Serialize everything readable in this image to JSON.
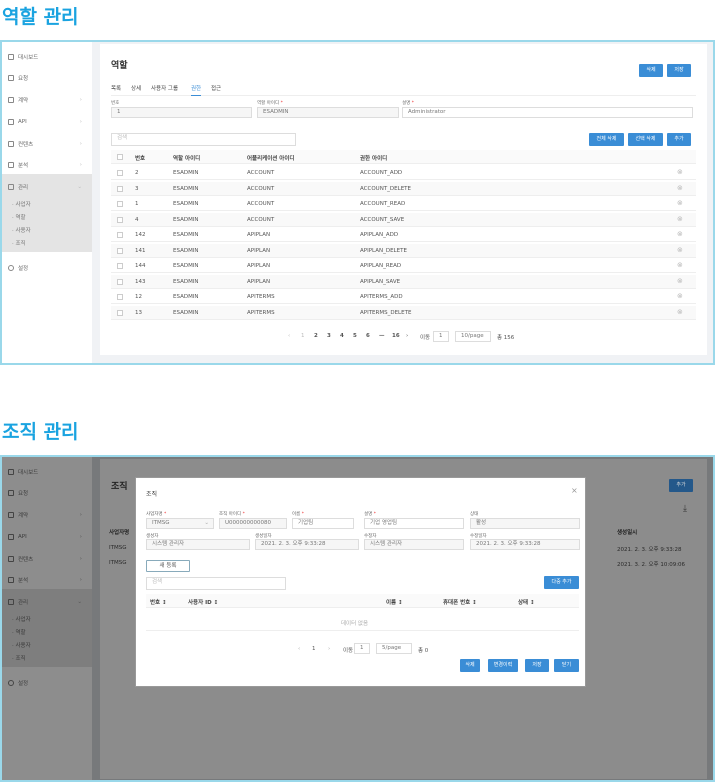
{
  "sections": {
    "role_title": "역할 관리",
    "org_title": "조직 관리"
  },
  "sidebar": {
    "items": [
      {
        "label": "대시보드",
        "icon": "dashboard-icon"
      },
      {
        "label": "요청",
        "icon": "request-icon"
      },
      {
        "label": "계약",
        "icon": "contract-icon"
      },
      {
        "label": "API",
        "icon": "api-icon"
      },
      {
        "label": "컨텐츠",
        "icon": "content-icon"
      },
      {
        "label": "분석",
        "icon": "analytics-icon"
      },
      {
        "label": "관리",
        "icon": "admin-icon"
      }
    ],
    "sub_items": [
      "사업자",
      "역할",
      "사용자",
      "조직"
    ],
    "settings": "설정"
  },
  "role": {
    "page_title": "역할",
    "delete": "삭제",
    "save": "저장",
    "tabs": [
      "목록",
      "상세",
      "사용자 그룹",
      "권한",
      "접근"
    ],
    "active_tab": "권한",
    "fields": {
      "no_label": "번호",
      "no_value": "1",
      "role_id_label": "역할 아이디",
      "role_id_value": "ESADMIN",
      "desc_label": "설명",
      "desc_value": "Administrator"
    },
    "search_placeholder": "검색",
    "delete_all": "전체 삭제",
    "delete_selected": "선택 삭제",
    "add": "추가",
    "columns": [
      "번호",
      "역할 아이디",
      "어플리케이션 아이디",
      "권한 아이디"
    ],
    "rows": [
      [
        "2",
        "ESADMIN",
        "ACCOUNT",
        "ACCOUNT_ADD"
      ],
      [
        "3",
        "ESADMIN",
        "ACCOUNT",
        "ACCOUNT_DELETE"
      ],
      [
        "1",
        "ESADMIN",
        "ACCOUNT",
        "ACCOUNT_READ"
      ],
      [
        "4",
        "ESADMIN",
        "ACCOUNT",
        "ACCOUNT_SAVE"
      ],
      [
        "142",
        "ESADMIN",
        "APIPLAN",
        "APIPLAN_ADD"
      ],
      [
        "141",
        "ESADMIN",
        "APIPLAN",
        "APIPLAN_DELETE"
      ],
      [
        "144",
        "ESADMIN",
        "APIPLAN",
        "APIPLAN_READ"
      ],
      [
        "143",
        "ESADMIN",
        "APIPLAN",
        "APIPLAN_SAVE"
      ],
      [
        "12",
        "ESADMIN",
        "APITERMS",
        "APITERMS_ADD"
      ],
      [
        "13",
        "ESADMIN",
        "APITERMS",
        "APITERMS_DELETE"
      ]
    ],
    "pagination": {
      "prev": "‹",
      "pages": [
        "1",
        "2",
        "3",
        "4",
        "5",
        "6",
        "—",
        "16"
      ],
      "current": "1",
      "next": "›",
      "goto_label": "이동",
      "goto_value": "1",
      "page_size": "10/page",
      "total": "총 156"
    }
  },
  "org": {
    "page_title": "조직",
    "add": "추가",
    "bg_columns": {
      "first": "사업자명",
      "last": "생성일시"
    },
    "bg_rows": [
      [
        "ITMSG",
        "2021. 2. 3. 오후 9:33:28"
      ],
      [
        "ITMSG",
        "2021. 3. 2. 오후 10:09:06"
      ]
    ],
    "modal": {
      "title": "조직",
      "close": "×",
      "f_biz_label": "사업자명",
      "f_biz_value": "ITMSG",
      "f_org_label": "조직 아이디",
      "f_org_value": "U000000000080",
      "f_name_label": "이름",
      "f_name_value": "기업팀",
      "f_desc_label": "설명",
      "f_desc_value": "기업 영업팀",
      "f_status_label": "상태",
      "f_status_value": "활성",
      "f_creator_label": "생성자",
      "f_creator_value": "시스템 관리자",
      "f_created_label": "생성일자",
      "f_created_value": "2021. 2. 3. 오후 9:33:28",
      "f_modifier_label": "수정자",
      "f_modifier_value": "시스템 관리자",
      "f_modified_label": "수정일자",
      "f_modified_value": "2021. 2. 3. 오후 9:33:28",
      "new_button": "새 등록",
      "search_placeholder": "검색",
      "multi_add": "다중 추가",
      "columns": [
        "번호 ↕",
        "사용자 ID ↕",
        "이름 ↕",
        "휴대폰 번호 ↕",
        "상태 ↕"
      ],
      "empty": "데이터 없음",
      "pagination": {
        "prev": "‹",
        "page": "1",
        "next": "›",
        "goto_label": "이동",
        "goto_value": "1",
        "page_size": "5/page",
        "total": "총 0"
      },
      "delete": "삭제",
      "history": "변경이력",
      "save": "저장",
      "close_button": "닫기"
    }
  },
  "colors": {
    "accent": "#3a8dd6",
    "title": "#1aa3e0",
    "frame": "#9ad8ea"
  }
}
